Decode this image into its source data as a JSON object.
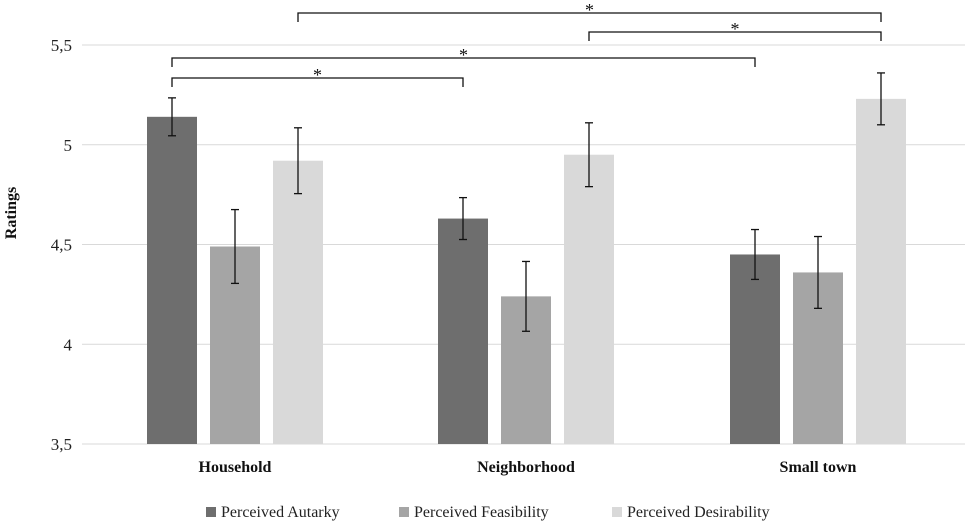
{
  "chart_data": {
    "type": "bar",
    "title": "",
    "xlabel": "",
    "ylabel": "Ratings",
    "ylim": [
      3.5,
      5.5
    ],
    "yticks": [
      3.5,
      4,
      4.5,
      5,
      5.5
    ],
    "ytick_labels": [
      "3,5",
      "4",
      "4,5",
      "5",
      "5,5"
    ],
    "grid": true,
    "legend_position": "bottom",
    "categories": [
      "Household",
      "Neighborhood",
      "Small town"
    ],
    "series": [
      {
        "name": "Perceived Autarky",
        "color": "#6e6e6e",
        "values": [
          5.14,
          4.63,
          4.45
        ],
        "error": [
          0.095,
          0.105,
          0.125
        ]
      },
      {
        "name": "Perceived Feasibility",
        "color": "#a5a5a5",
        "values": [
          4.49,
          4.24,
          4.36
        ],
        "error": [
          0.185,
          0.175,
          0.18
        ]
      },
      {
        "name": "Perceived Desirability",
        "color": "#d9d9d9",
        "values": [
          4.92,
          4.95,
          5.23
        ],
        "error": [
          0.165,
          0.16,
          0.13
        ]
      }
    ],
    "significance": [
      {
        "from": {
          "category": 0,
          "series": 0
        },
        "to": {
          "category": 1,
          "series": 0
        },
        "label": "*"
      },
      {
        "from": {
          "category": 0,
          "series": 0
        },
        "to": {
          "category": 2,
          "series": 0
        },
        "label": "*"
      },
      {
        "from": {
          "category": 1,
          "series": 2
        },
        "to": {
          "category": 2,
          "series": 2
        },
        "label": "*"
      },
      {
        "from": {
          "category": 0,
          "series": 2
        },
        "to": {
          "category": 2,
          "series": 2
        },
        "label": "*"
      }
    ]
  }
}
